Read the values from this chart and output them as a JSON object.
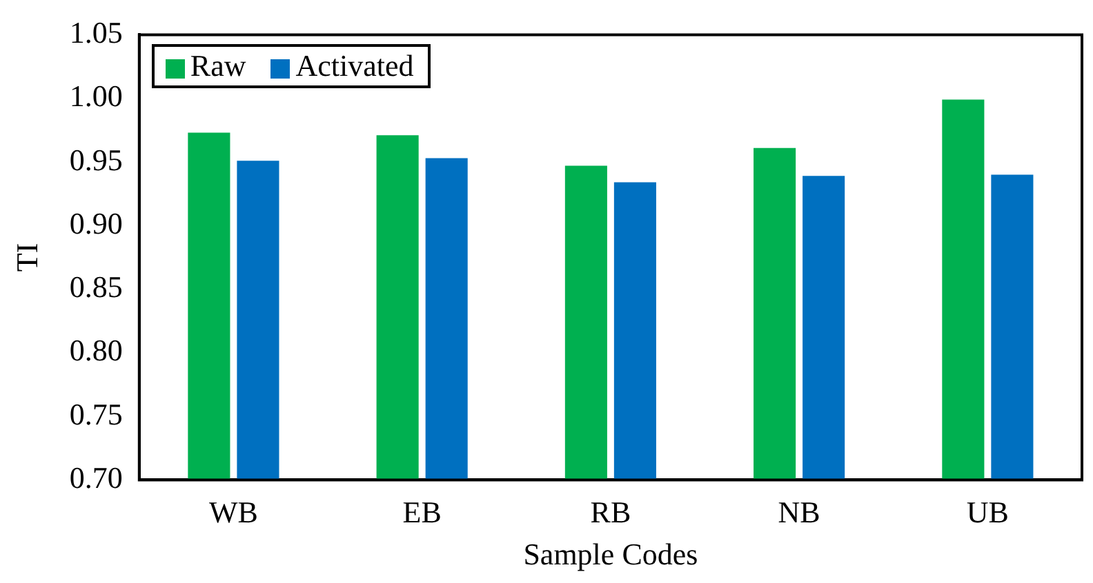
{
  "chart_data": {
    "type": "bar",
    "xlabel": "Sample Codes",
    "ylabel": "TI",
    "categories": [
      "WB",
      "EB",
      "RB",
      "NB",
      "UB"
    ],
    "series": [
      {
        "name": "Raw",
        "color": "#00b050",
        "values": [
          0.973,
          0.971,
          0.947,
          0.961,
          0.999
        ]
      },
      {
        "name": "Activated",
        "color": "#0070c0",
        "values": [
          0.951,
          0.953,
          0.934,
          0.939,
          0.94
        ]
      }
    ],
    "ylim": [
      0.7,
      1.05
    ],
    "yticks": [
      {
        "value": 0.7,
        "label": "0.70"
      },
      {
        "value": 0.75,
        "label": "0.75"
      },
      {
        "value": 0.8,
        "label": "0.80"
      },
      {
        "value": 0.85,
        "label": "0.85"
      },
      {
        "value": 0.9,
        "label": "0.90"
      },
      {
        "value": 0.95,
        "label": "0.95"
      },
      {
        "value": 1,
        "label": "1.00"
      },
      {
        "value": 1.05,
        "label": "1.05"
      }
    ],
    "grid": false,
    "legend": "top left"
  }
}
